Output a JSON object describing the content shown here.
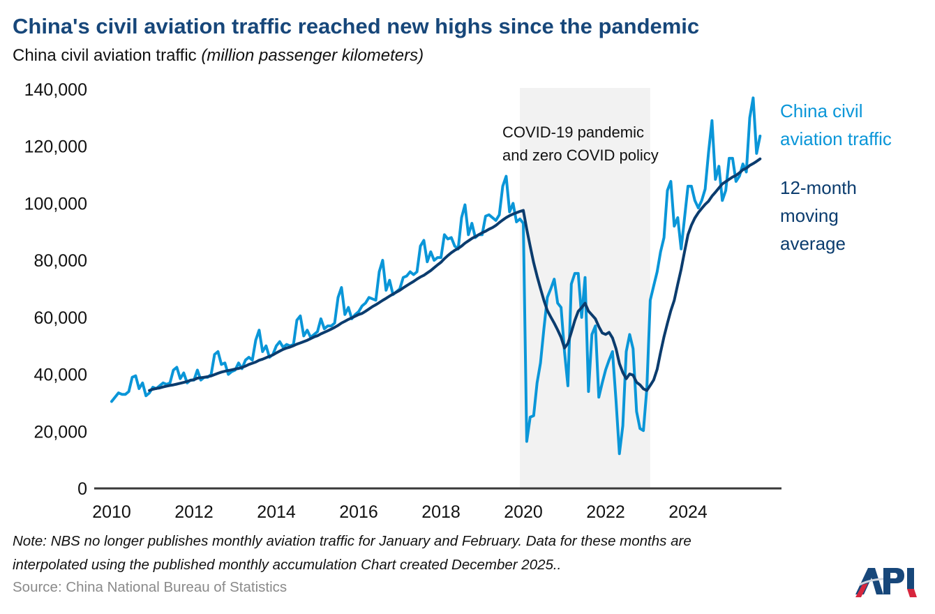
{
  "chart_data": {
    "type": "line",
    "title": "China's civil aviation traffic reached new highs since the pandemic",
    "subtitle": "China civil aviation traffic",
    "subtitle_unit": "(million passenger kilometers)",
    "xlabel": "",
    "ylabel": "",
    "xlim": [
      2010,
      2026
    ],
    "ylim": [
      0,
      140000
    ],
    "x_ticks": [
      "2010",
      "2012",
      "2014",
      "2016",
      "2018",
      "2020",
      "2022",
      "2024"
    ],
    "y_ticks": [
      "0",
      "20,000",
      "40,000",
      "60,000",
      "80,000",
      "100,000",
      "120,000",
      "140,000"
    ],
    "grid": false,
    "legend_placement": "right (direct labels)",
    "shaded_region": {
      "from": "2020-01",
      "to": "2023-03",
      "label_line1": "COVID-19 pandemic",
      "label_line2": "and zero COVID policy",
      "color": "#F2F2F2"
    },
    "series": [
      {
        "name": "China civil aviation traffic",
        "label_lines": [
          "China civil",
          "aviation traffic"
        ],
        "color": "#0A96D8",
        "frequency": "monthly",
        "values_by_year": {
          "2010": [
            30500,
            32000,
            33500,
            33000,
            33000,
            34000,
            39000,
            39500,
            35000,
            37000,
            32500,
            33500
          ],
          "2011": [
            35500,
            35000,
            36000,
            37000,
            36500,
            37000,
            41500,
            42500,
            38500,
            40500,
            37000,
            38000
          ],
          "2012": [
            38000,
            41500,
            38000,
            39000,
            39000,
            40000,
            47000,
            48000,
            43500,
            44000,
            40000,
            41000
          ],
          "2013": [
            41500,
            44000,
            42000,
            45000,
            46000,
            45000,
            52000,
            55500,
            48000,
            50000,
            46000,
            47000
          ],
          "2014": [
            50000,
            51500,
            49500,
            50500,
            50000,
            50500,
            59000,
            60500,
            53500,
            55500,
            53000,
            54000
          ],
          "2015": [
            55000,
            59500,
            56000,
            57000,
            57000,
            58000,
            67000,
            70500,
            61000,
            63500,
            59500,
            61000
          ],
          "2016": [
            62000,
            64000,
            65000,
            67000,
            66500,
            66000,
            76000,
            80000,
            69500,
            73000,
            68000,
            69000
          ],
          "2017": [
            70000,
            74000,
            74500,
            76000,
            75000,
            76000,
            85000,
            87000,
            79500,
            83000,
            80000,
            81000
          ],
          "2018": [
            81000,
            89000,
            87500,
            88000,
            85000,
            84000,
            95000,
            99500,
            89000,
            93000,
            88000,
            89000
          ],
          "2019": [
            89000,
            95500,
            96000,
            95000,
            94000,
            96000,
            106000,
            109500,
            97000,
            100000,
            93500,
            94500
          ],
          "2020": [
            93000,
            16500,
            25000,
            25500,
            37000,
            44000,
            56000,
            67000,
            70000,
            73400,
            65000,
            63500
          ],
          "2021": [
            48000,
            36000,
            71700,
            75400,
            75400,
            60000,
            74000,
            34000,
            54000,
            57000,
            32000,
            37000
          ],
          "2022": [
            41600,
            45000,
            48000,
            31000,
            12200,
            22000,
            48000,
            54000,
            49000,
            27000,
            21000,
            20300
          ],
          "2023": [
            35000,
            66000,
            71000,
            76000,
            83000,
            88000,
            104500,
            107700,
            92000,
            95000,
            84000,
            95000
          ],
          "2024": [
            106000,
            106000,
            101000,
            98400,
            101000,
            105000,
            118000,
            129000,
            108400,
            113000,
            101000,
            104500
          ],
          "2025": [
            115800,
            115800,
            107700,
            109600,
            113800,
            111000,
            130000,
            137000,
            117500,
            123600
          ]
        }
      },
      {
        "name": "12-month moving average",
        "label_lines": [
          "12-month",
          "moving",
          "average"
        ],
        "color": "#0B3C6E",
        "window_months": 12,
        "derived_from": "China civil aviation traffic"
      }
    ]
  },
  "note_line1": "Note: NBS no longer publishes monthly aviation traffic for January and February. Data for these months are",
  "note_line2": "interpolated using the published monthly accumulation Chart created December 2025..",
  "source": "Source: China National Bureau of Statistics",
  "logo": {
    "text": "API",
    "colors": {
      "blue": "#17477A",
      "red": "#D7263D"
    }
  }
}
